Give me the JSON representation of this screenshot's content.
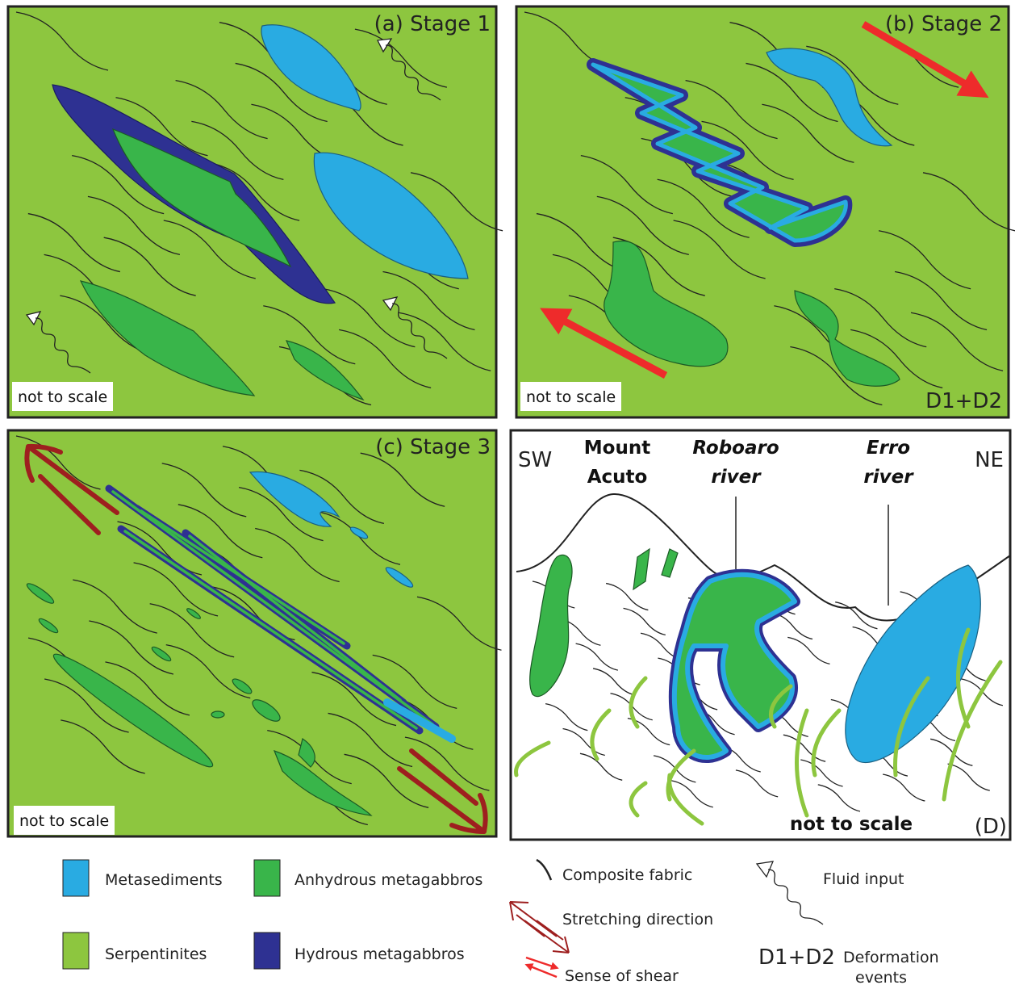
{
  "panels": [
    {
      "title": "(a) Stage 1",
      "note": "not to scale"
    },
    {
      "title": "(b) Stage 2",
      "note": "not to scale",
      "events": "D1+D2"
    },
    {
      "title": "(c) Stage 3",
      "note": "not to scale"
    },
    {
      "corner": "(D)",
      "note": "not to scale",
      "left": "SW",
      "right": "NE",
      "labels": [
        [
          "Mount",
          "Acuto"
        ],
        [
          "Roboaro",
          "river"
        ],
        [
          "Erro",
          "river"
        ]
      ]
    }
  ],
  "legend": [
    {
      "label": "Metasediments"
    },
    {
      "label": "Anhydrous metagabbros"
    },
    {
      "label": "Serpentinites"
    },
    {
      "label": "Hydrous metagabbros"
    },
    {
      "label": "Composite fabric"
    },
    {
      "label": "Stretching direction"
    },
    {
      "label": "Sense of shear"
    },
    {
      "label": "Fluid input"
    },
    {
      "symbol": "D1+D2",
      "label": [
        "Deformation",
        "events"
      ]
    }
  ]
}
